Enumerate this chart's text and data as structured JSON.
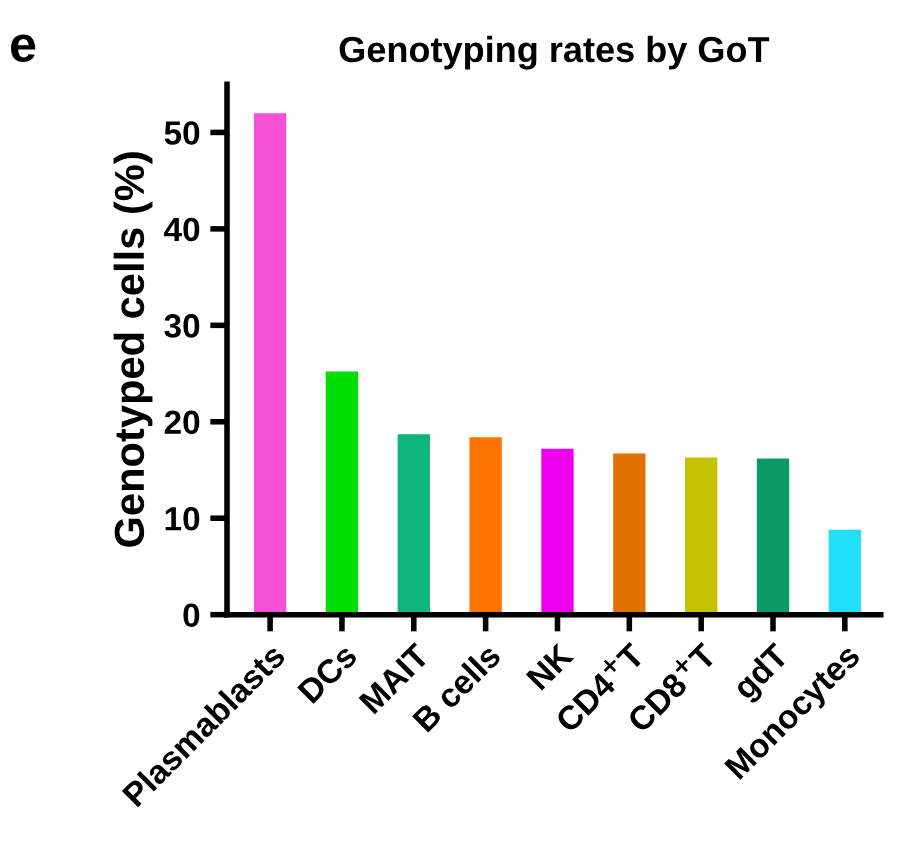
{
  "chart_data": {
    "type": "bar",
    "title": "Genotyping rates by GoT",
    "ylabel": "Genotyped cells (%)",
    "annotations": [
      "e"
    ],
    "categories": [
      "Plasmablasts",
      "DCs",
      "MAIT",
      "B cells",
      "NK",
      "CD4$^{+}$T",
      "CD8$^{+}$T",
      "gdT",
      "Monocytes"
    ],
    "values": [
      52.0,
      25.2,
      18.7,
      18.4,
      17.2,
      16.7,
      16.3,
      16.2,
      8.8
    ],
    "colors": [
      "#f650d6",
      "#00dd00",
      "#0db67a",
      "#ff7300",
      "#ee00ee",
      "#e07000",
      "#c2c200",
      "#0a9a64",
      "#22e0f8"
    ],
    "ylim": [
      0,
      55
    ],
    "yticks": [
      0,
      10,
      20,
      30,
      40,
      50
    ],
    "grid": false,
    "legend": false
  }
}
